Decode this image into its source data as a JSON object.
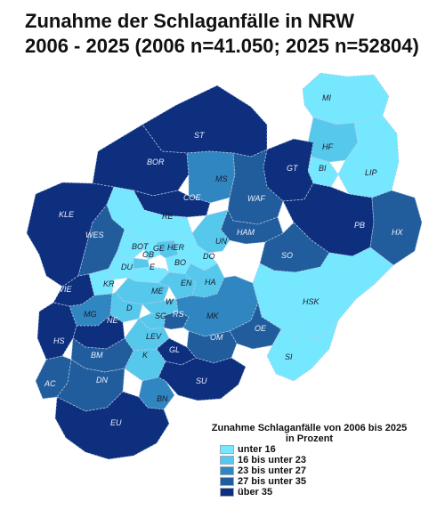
{
  "title": {
    "line1": "Zunahme der Schlaganfälle in NRW",
    "line2": "2006 - 2025 (2006 n=41.050; 2025 n=52804)"
  },
  "legend": {
    "title_line1": "Zunahme Schlaganfälle von 2006 bis 2025",
    "title_line2": "in Prozent",
    "classes": [
      {
        "label": "unter 16",
        "color": "#75e8ff"
      },
      {
        "label": "16 bis unter 23",
        "color": "#56c8ec"
      },
      {
        "label": "23 bis unter 27",
        "color": "#2f86c0"
      },
      {
        "label": "27 bis unter 35",
        "color": "#215d9c"
      },
      {
        "label": "über 35",
        "color": "#0e2f7e"
      }
    ]
  },
  "regions": [
    {
      "code": "MI",
      "cls": 0
    },
    {
      "code": "HF",
      "cls": 1
    },
    {
      "code": "BI",
      "cls": 0
    },
    {
      "code": "LIP",
      "cls": 0
    },
    {
      "code": "GT",
      "cls": 4
    },
    {
      "code": "PB",
      "cls": 4
    },
    {
      "code": "HX",
      "cls": 3
    },
    {
      "code": "ST",
      "cls": 4
    },
    {
      "code": "BOR",
      "cls": 4
    },
    {
      "code": "MS",
      "cls": 2
    },
    {
      "code": "WAF",
      "cls": 3
    },
    {
      "code": "COE",
      "cls": 4
    },
    {
      "code": "KLE",
      "cls": 4
    },
    {
      "code": "RE",
      "cls": 0
    },
    {
      "code": "HAM",
      "cls": 3
    },
    {
      "code": "UN",
      "cls": 1
    },
    {
      "code": "SO",
      "cls": 3
    },
    {
      "code": "WES",
      "cls": 3
    },
    {
      "code": "BOT",
      "cls": 0
    },
    {
      "code": "GE",
      "cls": 0
    },
    {
      "code": "HER",
      "cls": 1
    },
    {
      "code": "OB",
      "cls": 1
    },
    {
      "code": "BO",
      "cls": 0
    },
    {
      "code": "DO",
      "cls": 0
    },
    {
      "code": "DU",
      "cls": 0
    },
    {
      "code": "E",
      "cls": 0
    },
    {
      "code": "KR",
      "cls": 0
    },
    {
      "code": "ME",
      "cls": 1
    },
    {
      "code": "EN",
      "cls": 1
    },
    {
      "code": "HA",
      "cls": 1
    },
    {
      "code": "VIE",
      "cls": 4
    },
    {
      "code": "D",
      "cls": 1
    },
    {
      "code": "W",
      "cls": 1
    },
    {
      "code": "MG",
      "cls": 2
    },
    {
      "code": "NE",
      "cls": 4
    },
    {
      "code": "SG",
      "cls": 1
    },
    {
      "code": "RS",
      "cls": 3
    },
    {
      "code": "MK",
      "cls": 2
    },
    {
      "code": "HSK",
      "cls": 0
    },
    {
      "code": "OE",
      "cls": 3
    },
    {
      "code": "HS",
      "cls": 4
    },
    {
      "code": "LEV",
      "cls": 1
    },
    {
      "code": "OM",
      "cls": 3
    },
    {
      "code": "SI",
      "cls": 0
    },
    {
      "code": "BM",
      "cls": 3
    },
    {
      "code": "K",
      "cls": 1
    },
    {
      "code": "GL",
      "cls": 4
    },
    {
      "code": "AC",
      "cls": 3
    },
    {
      "code": "DN",
      "cls": 3
    },
    {
      "code": "SU",
      "cls": 4
    },
    {
      "code": "BN",
      "cls": 2
    },
    {
      "code": "EU",
      "cls": 4
    }
  ]
}
